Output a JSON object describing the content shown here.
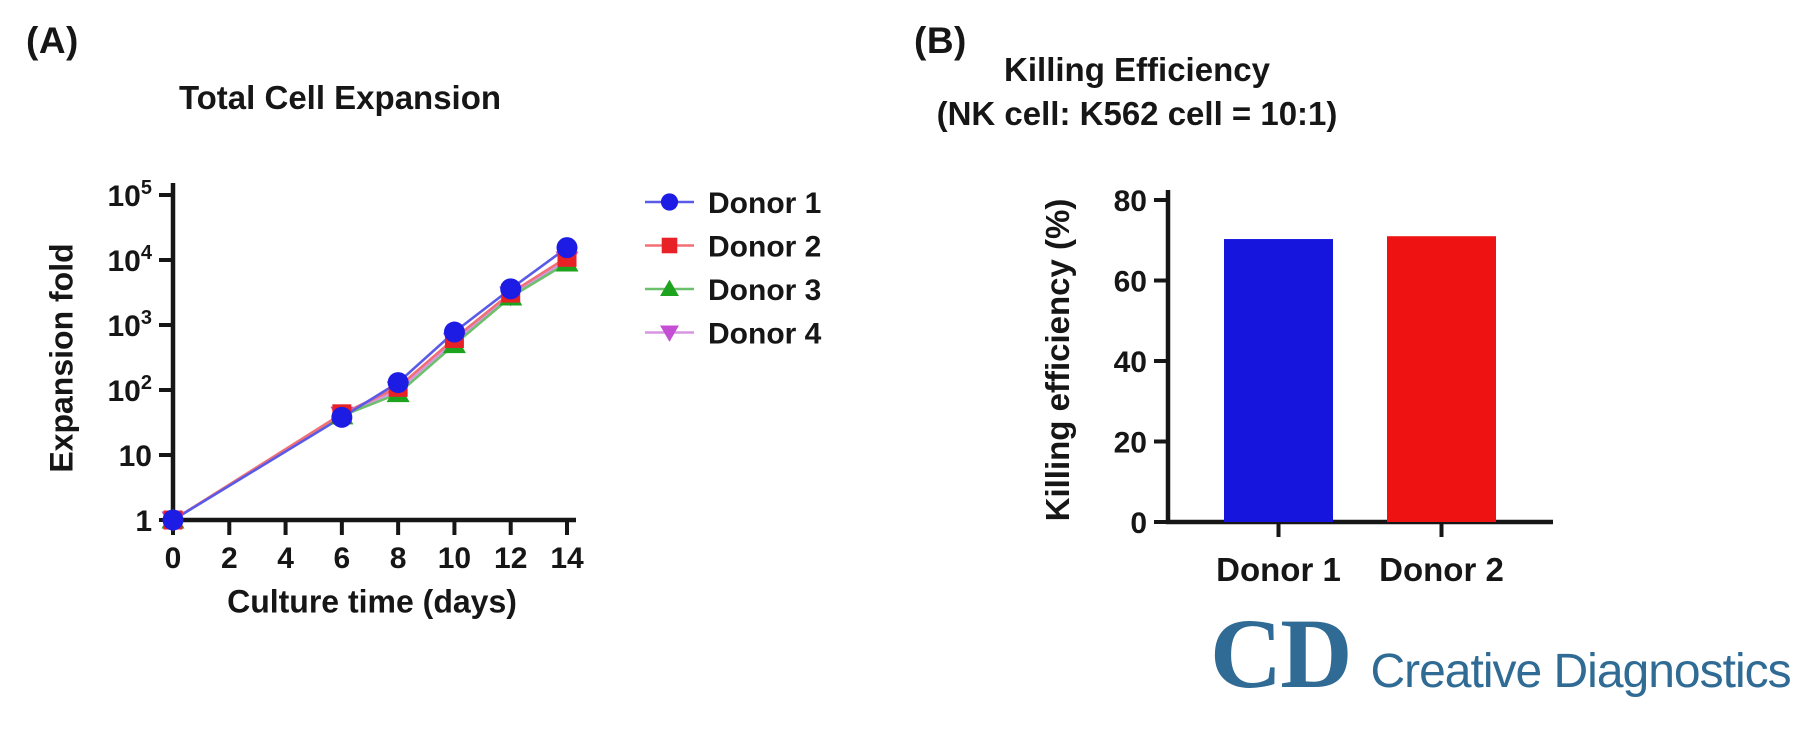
{
  "panel_a": {
    "panel_label": "(A)",
    "title": "Total Cell Expansion"
  },
  "panel_b": {
    "panel_label": "(B)",
    "title": "Killing Efficiency",
    "subtitle": "(NK cell: K562 cell = 10:1)"
  },
  "chart_data": [
    {
      "id": "total-cell-expansion",
      "type": "line",
      "title": "Total Cell Expansion",
      "xlabel": "Culture time (days)",
      "ylabel": "Expansion fold",
      "yscale": "log",
      "xlim": [
        0,
        14
      ],
      "ylim": [
        1,
        100000
      ],
      "xticks": [
        0,
        2,
        4,
        6,
        8,
        10,
        12,
        14
      ],
      "ytick_labels": [
        {
          "base": "1"
        },
        {
          "base": "10"
        },
        {
          "base": "10",
          "exp": "2"
        },
        {
          "base": "10",
          "exp": "3"
        },
        {
          "base": "10",
          "exp": "4"
        },
        {
          "base": "10",
          "exp": "5"
        }
      ],
      "grid": false,
      "legend_position": "right",
      "x": [
        0,
        6,
        8,
        10,
        12,
        14
      ],
      "series": [
        {
          "name": "Donor 1",
          "marker": "circle",
          "color": "#1c1ce4",
          "line_color": "#5a5ae8",
          "values": [
            1,
            38,
            130,
            780,
            3600,
            15500
          ]
        },
        {
          "name": "Donor 2",
          "marker": "square",
          "color": "#e82127",
          "line_color": "#f07076",
          "values": [
            1,
            43,
            110,
            620,
            3100,
            11000
          ]
        },
        {
          "name": "Donor 3",
          "marker": "triangle-up",
          "color": "#1ea31e",
          "line_color": "#6cc06c",
          "values": [
            1,
            40,
            88,
            500,
            2700,
            9000
          ]
        },
        {
          "name": "Donor 4",
          "marker": "triangle-down",
          "color": "#c44fd4",
          "line_color": "#d795e2",
          "values": [
            1,
            41,
            100,
            560,
            2900,
            10000
          ]
        }
      ]
    },
    {
      "id": "killing-efficiency",
      "type": "bar",
      "title": "Killing Efficiency",
      "subtitle": "(NK cell: K562 cell = 10:1)",
      "xlabel": "",
      "ylabel": "Killing efficiency (%)",
      "ylim": [
        0,
        80
      ],
      "yticks": [
        0,
        20,
        40,
        60,
        80
      ],
      "grid": false,
      "categories": [
        "Donor 1",
        "Donor 2"
      ],
      "values": [
        70.3,
        71
      ],
      "colors": [
        "#1515dd",
        "#ee1212"
      ]
    }
  ],
  "logo": {
    "monogram": "CD",
    "name": "Creative Diagnostics",
    "registered": "®",
    "color": "#2f6b94"
  }
}
